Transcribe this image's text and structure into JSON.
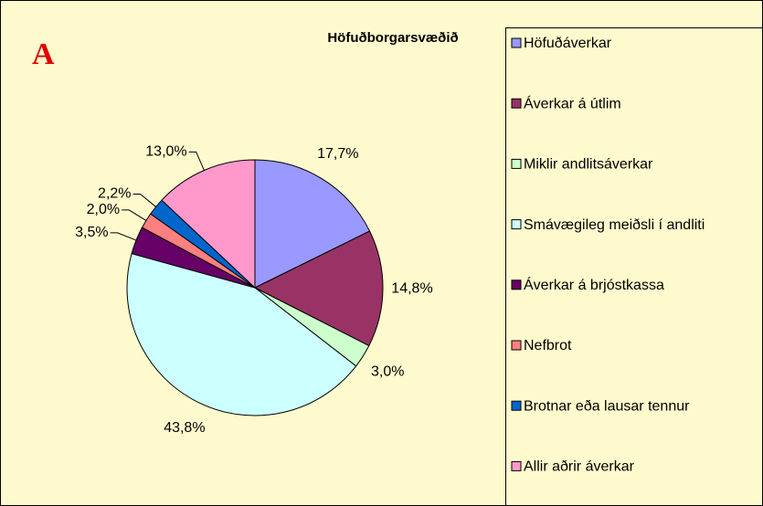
{
  "chart_data": {
    "type": "pie",
    "title": "Höfuðborgarsvæðið",
    "annotation": "A",
    "categories": [
      "Höfuðáverkar",
      "Áverkar á útlim",
      "Miklir andlitsáverkar",
      "Smávægileg meiðsli í andliti",
      "Áverkar á brjóstkassa",
      "Nefbrot",
      "Brotnar eða lausar tennur",
      "Allir aðrir áverkar"
    ],
    "values": [
      17.7,
      14.8,
      3.0,
      43.8,
      3.5,
      2.0,
      2.2,
      13.0
    ],
    "value_labels": [
      "17,7%",
      "14,8%",
      "3,0%",
      "43,8%",
      "3,5%",
      "2,0%",
      "2,2%",
      "13,0%"
    ],
    "colors": [
      "#9999ff",
      "#993366",
      "#ccffcc",
      "#ccffff",
      "#660066",
      "#ff8080",
      "#0066cc",
      "#ff99cc"
    ],
    "legend": "right"
  }
}
